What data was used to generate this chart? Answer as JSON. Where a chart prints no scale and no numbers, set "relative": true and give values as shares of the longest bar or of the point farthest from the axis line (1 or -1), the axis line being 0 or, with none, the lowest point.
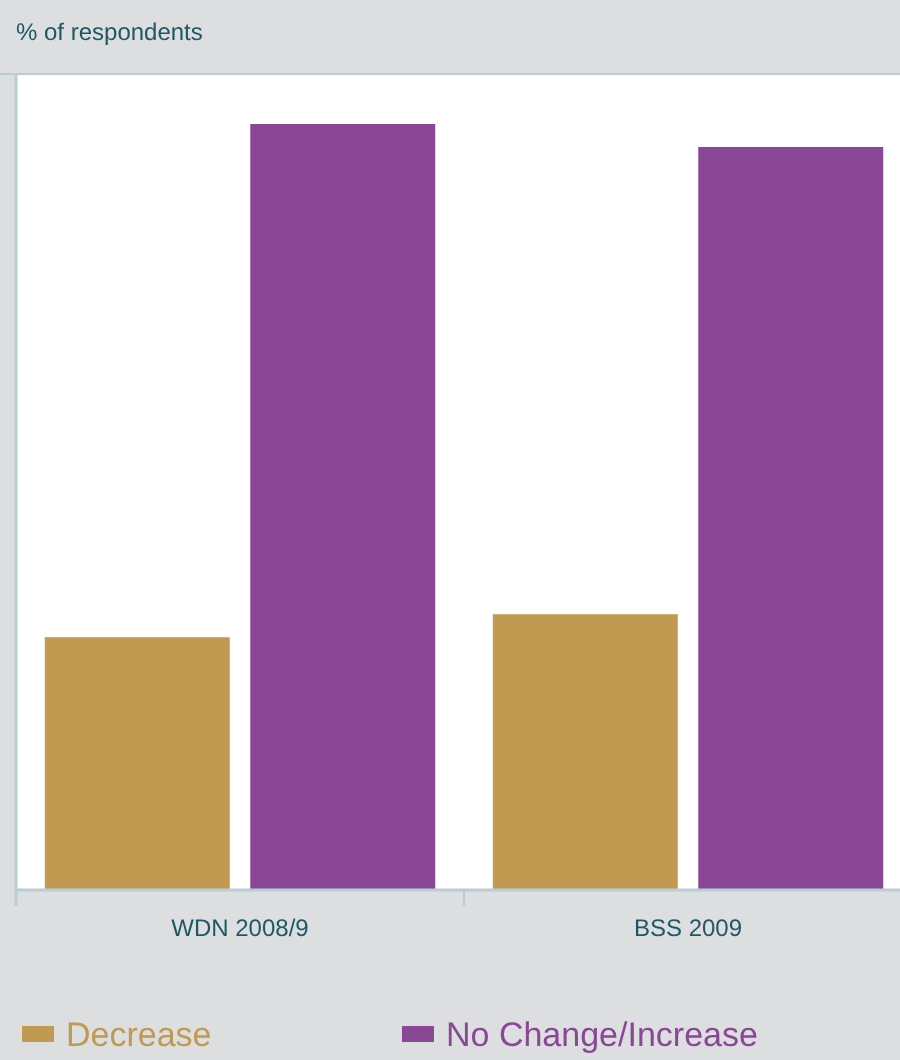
{
  "chart_data": {
    "type": "bar",
    "ylabel": "% of respondents",
    "categories": [
      "WDN 2008/9",
      "BSS 2009"
    ],
    "series": [
      {
        "name": "Decrease",
        "color": "#c19a51",
        "values": [
          0.33,
          0.36
        ]
      },
      {
        "name": "No Change/Increase",
        "color": "#8a4796",
        "values": [
          1,
          0.97
        ]
      }
    ],
    "relative": true,
    "legend": "bottom"
  }
}
